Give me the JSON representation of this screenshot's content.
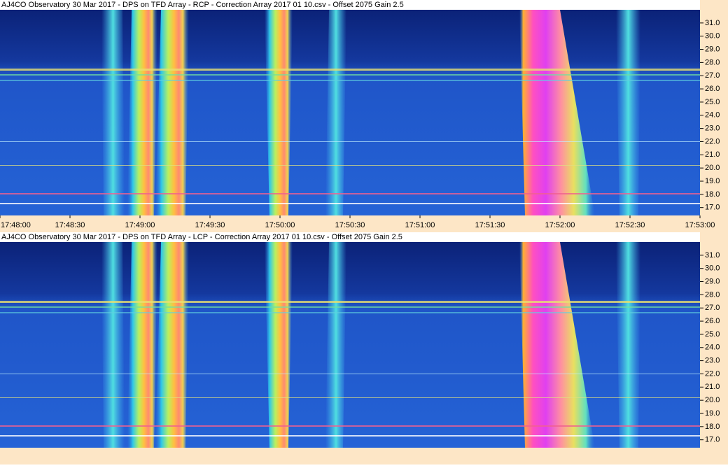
{
  "chart_data": [
    {
      "type": "heatmap",
      "title": "AJ4CO Observatory 30 Mar 2017  -  DPS on TFD Array  -  RCP  -  Correction Array 2017 01 10.csv  -  Offset 2075  Gain 2.5",
      "categories": [
        "17:48:00",
        "17:48:30",
        "17:49:00",
        "17:49:30",
        "17:50:00",
        "17:50:30",
        "17:51:00",
        "17:51:30",
        "17:52:00",
        "17:52:30",
        "17:53:00"
      ],
      "ylim": [
        16.4,
        32.0
      ],
      "yticks": [
        {
          "value": 17,
          "label": "17.0"
        },
        {
          "value": 18,
          "label": "18.0"
        },
        {
          "value": 19,
          "label": "19.0"
        },
        {
          "value": 20,
          "label": "20.0"
        },
        {
          "value": 21,
          "label": "21.0"
        },
        {
          "value": 22,
          "label": "22.0"
        },
        {
          "value": 23,
          "label": "23.0"
        },
        {
          "value": 24,
          "label": "24.0"
        },
        {
          "value": 25,
          "label": "25.0"
        },
        {
          "value": 26,
          "label": "26.0"
        },
        {
          "value": 27,
          "label": "27.0"
        },
        {
          "value": 28,
          "label": "28.0"
        },
        {
          "value": 29,
          "label": "29.0"
        },
        {
          "value": 30,
          "label": "30.0"
        },
        {
          "value": 31,
          "label": "31.0"
        }
      ]
    },
    {
      "type": "heatmap",
      "title": "AJ4CO Observatory 30 Mar 2017  -  DPS on TFD Array  -  LCP  -  Correction Array 2017 01 10.csv  -  Offset 2075  Gain 2.5",
      "ylim": [
        16.4,
        32.0
      ],
      "yticks": [
        {
          "value": 17,
          "label": "17.0"
        },
        {
          "value": 18,
          "label": "18.0"
        },
        {
          "value": 19,
          "label": "19.0"
        },
        {
          "value": 20,
          "label": "20.0"
        },
        {
          "value": 21,
          "label": "21.0"
        },
        {
          "value": 22,
          "label": "22.0"
        },
        {
          "value": 23,
          "label": "23.0"
        },
        {
          "value": 24,
          "label": "24.0"
        },
        {
          "value": 25,
          "label": "25.0"
        },
        {
          "value": 26,
          "label": "26.0"
        },
        {
          "value": 27,
          "label": "27.0"
        },
        {
          "value": 28,
          "label": "28.0"
        },
        {
          "value": 29,
          "label": "29.0"
        },
        {
          "value": 30,
          "label": "30.0"
        },
        {
          "value": 31,
          "label": "31.0"
        }
      ]
    }
  ]
}
